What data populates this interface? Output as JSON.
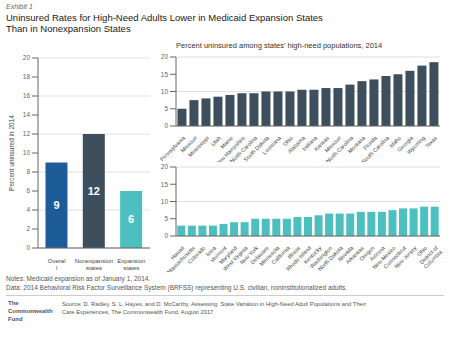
{
  "chart_data": [
    {
      "type": "bar",
      "subtitle": "Exhibit 1",
      "title": "Uninsured Rates for High-Need Adults Lower in Medicaid Expansion States\nThan in Nonexpansion States",
      "categories": [
        "Overal\nl",
        "Nonexpansion\nstates",
        "Expansion\nstates"
      ],
      "values": [
        9,
        12,
        6
      ],
      "colors": [
        "#1e5c99",
        "#3d4f5c",
        "#4dbfbf"
      ],
      "ylabel": "Percent uninsured in 2014",
      "ylim": [
        0,
        20
      ],
      "yticks": [
        0,
        2,
        4,
        6,
        8,
        10,
        12,
        14,
        16,
        18,
        20
      ],
      "grid": true,
      "data_labels": true,
      "annotations": [
        "Notes: Medicaid expansion as of January 1, 2014.",
        "Data: 2014 Behavioral Risk Factor Surveillance System (BRFSS) representing U.S. civilian, noninstitutionalized adults.",
        "Source: D. Radley, S. L. Hayes, and D. McCarthy, Assessing  State Variation in High-Need Adult Populations and Their\nCare Experiences, The Commonwealth Fund, August 2017.",
        "The\nCommonwealth\nFund"
      ]
    },
    {
      "type": "bar",
      "title": "Percent uninsured among states' high-need populations, 2014",
      "categories": [
        "Pennsylvania",
        "Missouri",
        "Mississippi",
        "Utah",
        "Maine",
        "New Hampshire",
        "North Carolina",
        "South Dakota",
        "Louisiana",
        "Ohio",
        "Alabama",
        "Indiana",
        "Kansas",
        "Missouri",
        "North Carolina",
        "Montana",
        "Florida",
        "South Carolina",
        "Idaho",
        "Georgia",
        "Wyoming",
        "Texas"
      ],
      "values": [
        5,
        7.5,
        8,
        8.5,
        9,
        9.5,
        9.5,
        10,
        10,
        10,
        10.5,
        10.5,
        11,
        11,
        12,
        13,
        13.5,
        14.5,
        15,
        16,
        17.5,
        18.5
      ],
      "color": "#3d4f5c",
      "ylim": [
        0,
        20
      ],
      "yticks": [
        0,
        5,
        10,
        15,
        20
      ],
      "grid": true
    },
    {
      "type": "bar",
      "categories": [
        "Hawaii",
        "Massachusetts",
        "Colorado",
        "Iowa",
        "Vermont",
        "Maryland",
        "West Virginia",
        "New York",
        "Delaware",
        "Minnesota",
        "California",
        "Illinois",
        "Rhode Island",
        "Kentucky",
        "Washington",
        "North Dakota",
        "Nevada",
        "Arkansas",
        "Oregon",
        "Arizona",
        "New Mexico",
        "Connecticut",
        "New Jersey",
        "Ohio",
        "District of\nColumbia"
      ],
      "values": [
        3,
        3,
        3,
        3,
        3.5,
        4,
        4,
        5,
        5,
        5,
        5,
        5.5,
        5.5,
        6,
        6.5,
        6.5,
        6.5,
        7,
        7,
        7,
        7.5,
        8,
        8,
        8.5,
        8.5
      ],
      "color": "#4dbfbf",
      "ylim": [
        0,
        20
      ],
      "yticks": [
        0,
        5,
        10,
        15,
        20
      ],
      "grid": true
    }
  ]
}
